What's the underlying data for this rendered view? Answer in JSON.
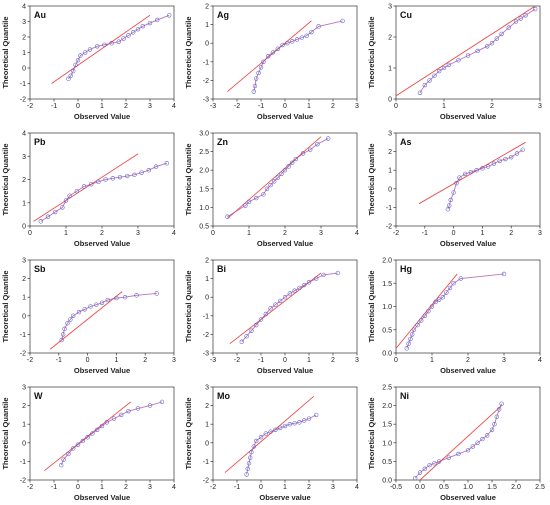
{
  "chart_data": [
    {
      "type": "scatter",
      "element": "Au",
      "xlabel": "Observed Value",
      "ylabel": "Theoretical Quantile",
      "xlim": [
        -2,
        4
      ],
      "ylim": [
        -2,
        4
      ],
      "xticks": [
        "-2",
        "-1",
        "0",
        "1",
        "2",
        "3",
        "4"
      ],
      "yticks": [
        "-2",
        "-1",
        "0",
        "1",
        "2",
        "3",
        "4"
      ],
      "ref_line": {
        "x": [
          -1.1,
          3.0
        ],
        "y": [
          -1.0,
          3.4
        ]
      },
      "points": {
        "x": [
          -0.4,
          -0.3,
          -0.2,
          -0.1,
          0.0,
          0.1,
          0.3,
          0.5,
          0.8,
          1.1,
          1.4,
          1.7,
          1.9,
          2.1,
          2.3,
          2.5,
          2.7,
          3.0,
          3.3,
          3.8
        ],
        "y": [
          -0.7,
          -0.5,
          -0.2,
          0.2,
          0.5,
          0.8,
          1.0,
          1.2,
          1.4,
          1.5,
          1.6,
          1.7,
          1.9,
          2.1,
          2.3,
          2.5,
          2.7,
          2.9,
          3.1,
          3.4
        ]
      }
    },
    {
      "type": "scatter",
      "element": "Ag",
      "xlabel": "Observed Value",
      "ylabel": "Theoretical Quantile",
      "xlim": [
        -3,
        3
      ],
      "ylim": [
        -3,
        2
      ],
      "xticks": [
        "-3",
        "-2",
        "-1",
        "0",
        "1",
        "2",
        "3"
      ],
      "yticks": [
        "-3",
        "-2",
        "-1",
        "0",
        "1",
        "2"
      ],
      "ref_line": {
        "x": [
          -2.4,
          1.1
        ],
        "y": [
          -2.6,
          1.2
        ]
      },
      "points": {
        "x": [
          -1.3,
          -1.25,
          -1.2,
          -1.1,
          -1.0,
          -0.9,
          -0.7,
          -0.5,
          -0.3,
          -0.1,
          0.1,
          0.3,
          0.5,
          0.7,
          0.9,
          1.1,
          1.4,
          2.4
        ],
        "y": [
          -2.6,
          -2.3,
          -1.9,
          -1.6,
          -1.3,
          -1.0,
          -0.7,
          -0.5,
          -0.3,
          -0.1,
          0.0,
          0.1,
          0.2,
          0.3,
          0.4,
          0.6,
          0.9,
          1.2
        ]
      }
    },
    {
      "type": "scatter",
      "element": "Cu",
      "xlabel": "Observed Value",
      "ylabel": "Theoretical Quantile",
      "xlim": [
        0,
        3
      ],
      "ylim": [
        0,
        3
      ],
      "xticks": [
        "0",
        "1",
        "2",
        "3"
      ],
      "yticks": [
        "0",
        "1",
        "2",
        "3"
      ],
      "ref_line": {
        "x": [
          0.0,
          2.9
        ],
        "y": [
          0.1,
          3.0
        ]
      },
      "points": {
        "x": [
          0.5,
          0.6,
          0.7,
          0.8,
          0.9,
          1.0,
          1.1,
          1.3,
          1.5,
          1.7,
          1.9,
          2.0,
          2.1,
          2.2,
          2.35,
          2.5,
          2.6,
          2.7,
          2.9
        ],
        "y": [
          0.2,
          0.45,
          0.6,
          0.75,
          0.9,
          1.0,
          1.1,
          1.25,
          1.4,
          1.55,
          1.7,
          1.8,
          1.95,
          2.1,
          2.3,
          2.5,
          2.6,
          2.7,
          2.9
        ]
      }
    },
    {
      "type": "scatter",
      "element": "Pb",
      "xlabel": "Observed Value",
      "ylabel": "Theoretical Quantile",
      "xlim": [
        0,
        4
      ],
      "ylim": [
        0,
        4
      ],
      "xticks": [
        "0",
        "1",
        "2",
        "3",
        "4"
      ],
      "yticks": [
        "0",
        "1",
        "2",
        "3",
        "4"
      ],
      "ref_line": {
        "x": [
          0.1,
          3.0
        ],
        "y": [
          0.2,
          3.1
        ]
      },
      "points": {
        "x": [
          0.3,
          0.5,
          0.7,
          0.9,
          1.0,
          1.1,
          1.3,
          1.5,
          1.7,
          1.9,
          2.1,
          2.3,
          2.5,
          2.7,
          2.9,
          3.1,
          3.3,
          3.5,
          3.8
        ],
        "y": [
          0.2,
          0.4,
          0.6,
          0.8,
          1.1,
          1.3,
          1.5,
          1.7,
          1.8,
          1.9,
          2.0,
          2.05,
          2.1,
          2.15,
          2.2,
          2.3,
          2.4,
          2.55,
          2.7
        ]
      }
    },
    {
      "type": "scatter",
      "element": "Zn",
      "xlabel": "Observed Value",
      "ylabel": "Theoretical Quantile",
      "xlim": [
        0,
        4
      ],
      "ylim": [
        0.5,
        3.0
      ],
      "xticks": [
        "0",
        "1",
        "2",
        "3",
        "4"
      ],
      "yticks": [
        "0.5",
        "1.0",
        "1.5",
        "2.0",
        "2.5",
        "3.0"
      ],
      "ref_line": {
        "x": [
          0.4,
          3.0
        ],
        "y": [
          0.7,
          2.9
        ]
      },
      "points": {
        "x": [
          0.4,
          0.9,
          1.0,
          1.2,
          1.4,
          1.5,
          1.6,
          1.7,
          1.8,
          1.9,
          2.0,
          2.1,
          2.2,
          2.3,
          2.5,
          2.7,
          2.9,
          3.2
        ],
        "y": [
          0.75,
          1.05,
          1.15,
          1.25,
          1.35,
          1.5,
          1.6,
          1.7,
          1.8,
          1.9,
          2.0,
          2.1,
          2.2,
          2.3,
          2.45,
          2.55,
          2.7,
          2.85
        ]
      }
    },
    {
      "type": "scatter",
      "element": "As",
      "xlabel": "Observed Value",
      "ylabel": "Theoretical Quantile",
      "xlim": [
        -2,
        3
      ],
      "ylim": [
        -2,
        3
      ],
      "xticks": [
        "-2",
        "-1",
        "0",
        "1",
        "2",
        "3"
      ],
      "yticks": [
        "-2",
        "-1",
        "0",
        "1",
        "2",
        "3"
      ],
      "ref_line": {
        "x": [
          -1.2,
          2.5
        ],
        "y": [
          -0.8,
          2.5
        ]
      },
      "points": {
        "x": [
          -0.2,
          -0.15,
          -0.1,
          0.0,
          0.1,
          0.2,
          0.4,
          0.6,
          0.8,
          1.0,
          1.2,
          1.4,
          1.6,
          1.8,
          2.0,
          2.2,
          2.4
        ],
        "y": [
          -1.1,
          -0.9,
          -0.6,
          -0.2,
          0.3,
          0.6,
          0.8,
          0.9,
          1.0,
          1.1,
          1.2,
          1.35,
          1.5,
          1.6,
          1.7,
          1.9,
          2.1
        ]
      }
    },
    {
      "type": "scatter",
      "element": "Sb",
      "xlabel": "Observed Value",
      "ylabel": "Theoretical Quantile",
      "xlim": [
        -2,
        3
      ],
      "ylim": [
        -2,
        3
      ],
      "xticks": [
        "-2",
        "-1",
        "0",
        "1",
        "2",
        "3"
      ],
      "yticks": [
        "-2",
        "-1",
        "0",
        "1",
        "2",
        "3"
      ],
      "ref_line": {
        "x": [
          -1.3,
          1.2
        ],
        "y": [
          -1.8,
          1.3
        ]
      },
      "points": {
        "x": [
          -0.9,
          -0.85,
          -0.8,
          -0.7,
          -0.6,
          -0.5,
          -0.3,
          -0.1,
          0.1,
          0.3,
          0.5,
          0.7,
          1.0,
          1.3,
          1.7,
          2.4
        ],
        "y": [
          -1.3,
          -1.0,
          -0.7,
          -0.4,
          -0.2,
          0.0,
          0.2,
          0.35,
          0.5,
          0.6,
          0.7,
          0.85,
          0.95,
          1.0,
          1.1,
          1.2
        ]
      }
    },
    {
      "type": "scatter",
      "element": "Bi",
      "xlabel": "Observed Value",
      "ylabel": "Theoretical Quantile",
      "xlim": [
        -3,
        3
      ],
      "ylim": [
        -3,
        2
      ],
      "xticks": [
        "-3",
        "-2",
        "-1",
        "0",
        "1",
        "2",
        "3"
      ],
      "yticks": [
        "-3",
        "-2",
        "-1",
        "0",
        "1",
        "2"
      ],
      "ref_line": {
        "x": [
          -2.3,
          1.5
        ],
        "y": [
          -2.5,
          1.3
        ]
      },
      "points": {
        "x": [
          -1.8,
          -1.6,
          -1.4,
          -1.2,
          -1.0,
          -0.8,
          -0.6,
          -0.4,
          -0.2,
          0.0,
          0.2,
          0.4,
          0.6,
          0.8,
          1.0,
          1.3,
          1.6,
          2.2
        ],
        "y": [
          -2.4,
          -2.1,
          -1.8,
          -1.5,
          -1.2,
          -0.9,
          -0.6,
          -0.4,
          -0.2,
          0.0,
          0.2,
          0.35,
          0.5,
          0.65,
          0.8,
          1.0,
          1.2,
          1.3
        ]
      }
    },
    {
      "type": "scatter",
      "element": "Hg",
      "xlabel": "Observed value",
      "ylabel": "Theoretical Quantile",
      "xlim": [
        0,
        4
      ],
      "ylim": [
        0,
        2
      ],
      "xticks": [
        "0",
        "1",
        "2",
        "3",
        "4"
      ],
      "yticks": [
        "0.0",
        "0.5",
        "1.0",
        "1.5",
        "2.0"
      ],
      "ref_line": {
        "x": [
          0.0,
          1.7
        ],
        "y": [
          0.1,
          1.7
        ]
      },
      "points": {
        "x": [
          0.3,
          0.35,
          0.4,
          0.45,
          0.5,
          0.6,
          0.7,
          0.8,
          0.9,
          1.0,
          1.1,
          1.2,
          1.3,
          1.4,
          1.5,
          1.6,
          1.8,
          3.0
        ],
        "y": [
          0.1,
          0.2,
          0.3,
          0.4,
          0.5,
          0.6,
          0.7,
          0.8,
          0.9,
          1.0,
          1.1,
          1.15,
          1.2,
          1.3,
          1.4,
          1.5,
          1.6,
          1.7
        ]
      }
    },
    {
      "type": "scatter",
      "element": "W",
      "xlabel": "Observed Value",
      "ylabel": "Theoretical Quantile",
      "xlim": [
        -2,
        4
      ],
      "ylim": [
        -2,
        3
      ],
      "xticks": [
        "-2",
        "-1",
        "0",
        "1",
        "2",
        "3",
        "4"
      ],
      "yticks": [
        "-2",
        "-1",
        "0",
        "1",
        "2",
        "3"
      ],
      "ref_line": {
        "x": [
          -1.4,
          2.2
        ],
        "y": [
          -1.5,
          2.2
        ]
      },
      "points": {
        "x": [
          -0.7,
          -0.6,
          -0.4,
          -0.2,
          0.0,
          0.2,
          0.4,
          0.6,
          0.8,
          1.0,
          1.2,
          1.5,
          1.8,
          2.1,
          2.5,
          3.0,
          3.5
        ],
        "y": [
          -1.2,
          -0.9,
          -0.6,
          -0.3,
          -0.1,
          0.1,
          0.3,
          0.5,
          0.7,
          0.9,
          1.1,
          1.3,
          1.5,
          1.7,
          1.85,
          2.0,
          2.2
        ]
      }
    },
    {
      "type": "scatter",
      "element": "Mo",
      "xlabel": "Observe value",
      "ylabel": "Theoretical Quantile",
      "xlim": [
        -2,
        4
      ],
      "ylim": [
        -2,
        3
      ],
      "xticks": [
        "-2",
        "-1",
        "0",
        "1",
        "2",
        "3",
        "4"
      ],
      "yticks": [
        "-2",
        "-1",
        "0",
        "1",
        "2",
        "3"
      ],
      "ref_line": {
        "x": [
          -1.5,
          2.2
        ],
        "y": [
          -1.6,
          2.5
        ]
      },
      "points": {
        "x": [
          -0.6,
          -0.55,
          -0.5,
          -0.45,
          -0.4,
          -0.3,
          -0.2,
          0.0,
          0.2,
          0.4,
          0.6,
          0.8,
          1.0,
          1.2,
          1.4,
          1.6,
          1.8,
          2.0,
          2.3
        ],
        "y": [
          -1.7,
          -1.4,
          -1.1,
          -0.8,
          -0.5,
          -0.2,
          0.1,
          0.3,
          0.5,
          0.6,
          0.7,
          0.8,
          0.9,
          1.0,
          1.05,
          1.1,
          1.2,
          1.3,
          1.5
        ]
      }
    },
    {
      "type": "scatter",
      "element": "Ni",
      "xlabel": "Observed value",
      "ylabel": "Theoretical Quantile",
      "xlim": [
        -0.5,
        2.5
      ],
      "ylim": [
        0.0,
        2.5
      ],
      "xticks": [
        "-0.5",
        "0.0",
        "0.5",
        "1.0",
        "1.5",
        "2.0",
        "2.5"
      ],
      "yticks": [
        "0.0",
        "0.5",
        "1.0",
        "1.5",
        "2.0",
        "2.5"
      ],
      "ref_line": {
        "x": [
          0.0,
          1.7
        ],
        "y": [
          0.0,
          2.0
        ]
      },
      "points": {
        "x": [
          -0.1,
          0.0,
          0.1,
          0.2,
          0.3,
          0.4,
          0.6,
          0.8,
          1.0,
          1.1,
          1.2,
          1.3,
          1.4,
          1.5,
          1.55,
          1.6,
          1.65,
          1.7
        ],
        "y": [
          0.05,
          0.2,
          0.3,
          0.4,
          0.45,
          0.5,
          0.6,
          0.7,
          0.8,
          0.9,
          1.0,
          1.1,
          1.2,
          1.35,
          1.5,
          1.7,
          1.9,
          2.05
        ]
      }
    }
  ]
}
